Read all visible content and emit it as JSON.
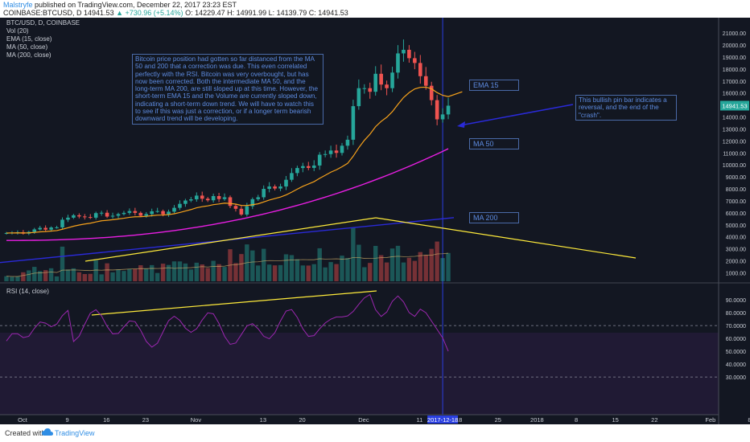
{
  "header": {
    "author": "Malstryfe",
    "published_text": "published on TradingView.com, December 22, 2017 23:23 EST",
    "symbol": "COINBASE:BTCUSD, D",
    "last": "14941.53",
    "change": "▲ +730.96 (+5.14%)",
    "ohlc": "O: 14229.47 H: 14991.99 L: 14139.79 C: 14941.53"
  },
  "legend_main": [
    "BTC/USD, D, COINBASE",
    "Vol (20)",
    "EMA (15, close)",
    "MA (50, close)",
    "MA (200, close)"
  ],
  "legend_rsi": "RSI (14, close)",
  "annotations": {
    "main_note": "Bitcoin price position had gotten so far distanced from the MA 50 and 200 that a correction was due. This even correlated perfectly with the RSI. Bitcoin was very overbought, but has now been corrected. Both the intermediate MA 50, and the long-term MA 200, are still sloped up at this time. However, the short-term EMA 15 and the Volume are currently sloped down, indicating a short-term down trend. We will have to watch this to see if this was just a correction, or if a longer term bearish downward trend will be developing.",
    "pin_note": "This bullish pin bar indicates a reversal, and the end of the \"crash\".",
    "ema_tag": "EMA 15",
    "ma50_tag": "MA 50",
    "ma200_tag": "MA 200"
  },
  "footer": {
    "created": "Created with",
    "brand": "TradingView"
  },
  "colors": {
    "bg": "#131722",
    "up": "#26a69a",
    "down": "#ef5350",
    "ema": "#f7a21b",
    "ma50": "#e91ee3",
    "ma200": "#2a2ad8",
    "trend": "#ffeb3b",
    "rsi": "#9c27b0",
    "note": "#5d8be0"
  },
  "chart_data": {
    "type": "candlestick",
    "price_axis_labels": [
      "21000.00",
      "20000.00",
      "19000.00",
      "18000.00",
      "17000.00",
      "16000.00",
      "15000.00",
      "14000.00",
      "13000.00",
      "12000.00",
      "11000.00",
      "10000.00",
      "9000.00",
      "8000.00",
      "7000.00",
      "6000.00",
      "5000.00",
      "4000.00",
      "3000.00",
      "2000.00",
      "1000.00"
    ],
    "price_axis_values": [
      21000,
      20000,
      19000,
      18000,
      17000,
      16000,
      15000,
      14000,
      13000,
      12000,
      11000,
      10000,
      9000,
      8000,
      7000,
      6000,
      5000,
      4000,
      3000,
      2000,
      1000
    ],
    "last_price_label": "14941.53",
    "rsi_axis_labels": [
      "90.0000",
      "80.0000",
      "70.0000",
      "60.0000",
      "50.0000",
      "40.0000",
      "30.0000"
    ],
    "rsi_axis_values": [
      90,
      80,
      70,
      60,
      50,
      40,
      30
    ],
    "date_labels": [
      "Oct",
      "9",
      "16",
      "23",
      "Nov",
      "13",
      "20",
      "Dec",
      "11",
      "18",
      "25",
      "2018",
      "8",
      "15",
      "22",
      "Feb",
      "8"
    ],
    "date_offsets": [
      0,
      8,
      15,
      22,
      31,
      43,
      50,
      61,
      71,
      78,
      85,
      92,
      99,
      106,
      113,
      123,
      130
    ],
    "highlighted_date": "2017-12-18",
    "highlighted_offset": 78,
    "closes": [
      4320,
      4350,
      4380,
      4270,
      4410,
      4620,
      4750,
      4600,
      4780,
      4790,
      5430,
      5600,
      5800,
      5700,
      5650,
      5600,
      5980,
      6010,
      5690,
      5760,
      5900,
      6000,
      6150,
      6000,
      5760,
      5900,
      6130,
      6150,
      5880,
      6100,
      6420,
      6750,
      7030,
      7130,
      7440,
      7180,
      7050,
      7400,
      7150,
      7300,
      6580,
      6340,
      5860,
      6550,
      7140,
      7300,
      8000,
      8200,
      8030,
      8200,
      8760,
      9320,
      9740,
      9900,
      9750,
      9950,
      10850,
      10900,
      11200,
      11000,
      11600,
      12100,
      14900,
      16400,
      16400,
      16100,
      17600,
      16700,
      16400,
      17700,
      19300,
      19600,
      18900,
      18500,
      17400,
      16600,
      15400,
      13800,
      14210,
      14940
    ],
    "ema15_last": 16100,
    "ma50_last": 11350,
    "ma200_last": 5600,
    "rsi_peak": 95,
    "rsi_last": 50,
    "volume_last_visible_high": 4500
  }
}
